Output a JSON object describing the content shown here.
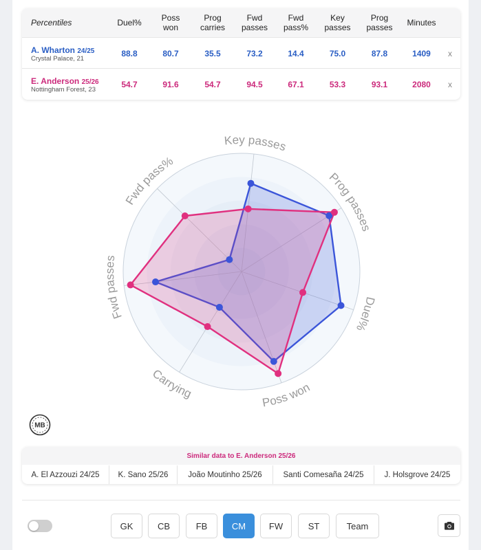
{
  "table": {
    "headers": [
      "Percentiles",
      "Duel%",
      "Poss\nwon",
      "Prog\ncarries",
      "Fwd\npasses",
      "Fwd\npass%",
      "Key\npasses",
      "Prog\npasses",
      "Minutes"
    ],
    "players": [
      {
        "name": "A. Wharton",
        "season": "24/25",
        "club": "Crystal Palace, 21",
        "values": [
          "88.8",
          "80.7",
          "35.5",
          "73.2",
          "14.4",
          "75.0",
          "87.8",
          "1409"
        ],
        "remove": "x",
        "color": "#2a5ec4"
      },
      {
        "name": "E. Anderson",
        "season": "25/26",
        "club": "Nottingham Forest, 23",
        "values": [
          "54.7",
          "91.6",
          "54.7",
          "94.5",
          "67.1",
          "53.3",
          "93.1",
          "2080"
        ],
        "remove": "x",
        "color": "#cc2a7c"
      }
    ]
  },
  "chart_data": {
    "type": "radar",
    "axes": [
      "Key passes",
      "Prog passes",
      "Duel%",
      "Poss won",
      "Carrying",
      "Fwd passes",
      "Fwd pass%"
    ],
    "range": [
      0,
      100
    ],
    "series": [
      {
        "name": "A. Wharton 24/25",
        "color": "#3b55d9",
        "values": [
          75.0,
          87.8,
          88.8,
          80.7,
          35.5,
          73.2,
          14.4
        ]
      },
      {
        "name": "E. Anderson 25/26",
        "color": "#e0307f",
        "values": [
          53.3,
          93.1,
          54.7,
          91.6,
          54.7,
          94.5,
          67.1
        ]
      }
    ]
  },
  "logo": {
    "text": "MB"
  },
  "similar": {
    "title": "Similar data to E. Anderson 25/26",
    "items": [
      "A. El Azzouzi 24/25",
      "K. Sano 25/26",
      "João Moutinho 25/26",
      "Santi Comesaña 24/25",
      "J. Holsgrove 24/25"
    ]
  },
  "positions": {
    "buttons": [
      "GK",
      "CB",
      "FB",
      "CM",
      "FW",
      "ST",
      "Team"
    ],
    "active": "CM"
  },
  "icons": {
    "camera": "camera-icon"
  }
}
